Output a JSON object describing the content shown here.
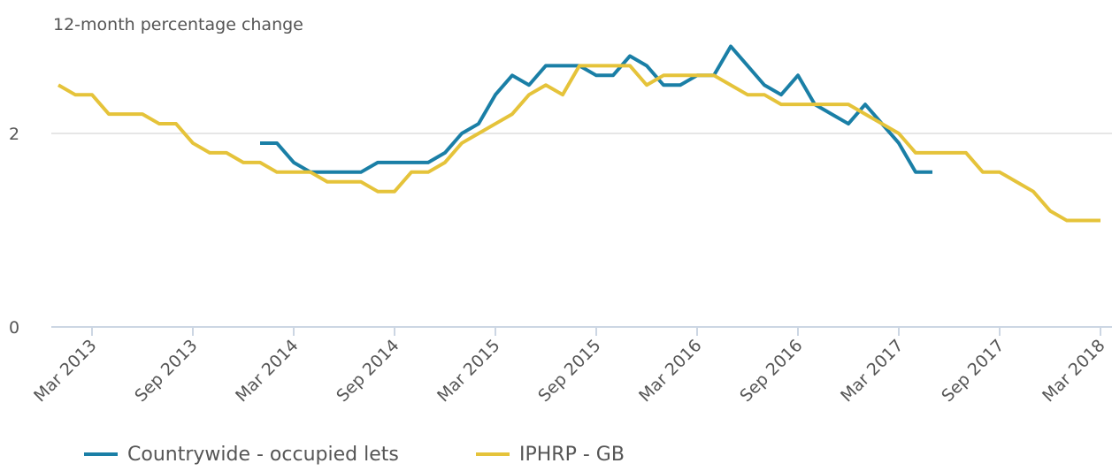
{
  "chart_data": {
    "type": "line",
    "y_label": "12-month percentage change",
    "categories": [
      null,
      null,
      "Mar 2013",
      null,
      null,
      null,
      null,
      null,
      "Sep 2013",
      null,
      null,
      null,
      null,
      null,
      "Mar 2014",
      null,
      null,
      null,
      null,
      null,
      "Sep 2014",
      null,
      null,
      null,
      null,
      null,
      "Mar 2015",
      null,
      null,
      null,
      null,
      null,
      "Sep 2015",
      null,
      null,
      null,
      null,
      null,
      "Mar 2016",
      null,
      null,
      null,
      null,
      null,
      "Sep 2016",
      null,
      null,
      null,
      null,
      null,
      "Mar 2017",
      null,
      null,
      null,
      null,
      null,
      "Sep 2017",
      null,
      null,
      null,
      null,
      null,
      "Mar 2018"
    ],
    "series": [
      {
        "name": "Countrywide - occupied lets",
        "color": "#1a7fa6",
        "values": [
          null,
          null,
          null,
          null,
          null,
          null,
          null,
          null,
          null,
          null,
          null,
          null,
          1.9,
          1.9,
          1.7,
          1.6,
          1.6,
          1.6,
          1.6,
          1.7,
          1.7,
          1.7,
          1.7,
          1.8,
          2.0,
          2.1,
          2.4,
          2.6,
          2.5,
          2.7,
          2.7,
          2.7,
          2.6,
          2.6,
          2.8,
          2.7,
          2.5,
          2.5,
          2.6,
          2.6,
          2.9,
          2.7,
          2.5,
          2.4,
          2.6,
          2.3,
          2.2,
          2.1,
          2.3,
          2.1,
          1.9,
          1.6,
          1.6,
          null,
          null,
          null,
          null,
          null,
          null,
          null,
          null,
          null,
          null
        ]
      },
      {
        "name": "IPHRP - GB",
        "color": "#e5c33a",
        "values": [
          2.5,
          2.4,
          2.4,
          2.2,
          2.2,
          2.2,
          2.1,
          2.1,
          1.9,
          1.8,
          1.8,
          1.7,
          1.7,
          1.6,
          1.6,
          1.6,
          1.5,
          1.5,
          1.5,
          1.4,
          1.4,
          1.6,
          1.6,
          1.7,
          1.9,
          2.0,
          2.1,
          2.2,
          2.4,
          2.5,
          2.4,
          2.7,
          2.7,
          2.7,
          2.7,
          2.5,
          2.6,
          2.6,
          2.6,
          2.6,
          2.5,
          2.4,
          2.4,
          2.3,
          2.3,
          2.3,
          2.3,
          2.3,
          2.2,
          2.1,
          2.0,
          1.8,
          1.8,
          1.8,
          1.8,
          1.6,
          1.6,
          1.5,
          1.4,
          1.2,
          1.1,
          1.1,
          1.1
        ]
      }
    ],
    "ylim": [
      0,
      3
    ],
    "yticks": [
      0,
      2
    ],
    "grid": true,
    "legend": "bottom"
  }
}
